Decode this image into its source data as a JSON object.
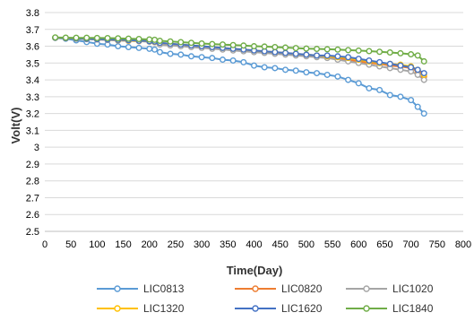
{
  "chart_data": {
    "type": "line",
    "xlabel": "Time(Day)",
    "ylabel": "Volt(V)",
    "xlim": [
      0,
      800
    ],
    "ylim": [
      2.5,
      3.8
    ],
    "x_ticks": [
      "0",
      "50",
      "100",
      "150",
      "200",
      "250",
      "300",
      "350",
      "400",
      "450",
      "500",
      "550",
      "600",
      "650",
      "700",
      "750",
      "800"
    ],
    "y_ticks": [
      "2.5",
      "2.6",
      "2.7",
      "2.8",
      "2.9",
      "3",
      "3.1",
      "3.2",
      "3.3",
      "3.4",
      "3.5",
      "3.6",
      "3.7",
      "3.8"
    ],
    "grid": "horizontal",
    "legend_position": "bottom",
    "series": [
      {
        "name": "LIC0813",
        "color": "#5b9bd5",
        "x": [
          20,
          40,
          60,
          80,
          100,
          120,
          140,
          160,
          180,
          200,
          210,
          220,
          240,
          260,
          280,
          300,
          320,
          340,
          360,
          380,
          400,
          420,
          440,
          460,
          480,
          500,
          520,
          540,
          560,
          580,
          600,
          620,
          640,
          660,
          680,
          700,
          713,
          725
        ],
        "y": [
          3.65,
          3.645,
          3.635,
          3.625,
          3.615,
          3.61,
          3.6,
          3.595,
          3.59,
          3.585,
          3.58,
          3.565,
          3.555,
          3.55,
          3.54,
          3.535,
          3.53,
          3.52,
          3.515,
          3.505,
          3.485,
          3.475,
          3.47,
          3.46,
          3.455,
          3.445,
          3.44,
          3.43,
          3.42,
          3.4,
          3.38,
          3.35,
          3.34,
          3.31,
          3.3,
          3.28,
          3.24,
          3.2
        ]
      },
      {
        "name": "LIC0820",
        "color": "#ed7d31",
        "x": [
          20,
          40,
          60,
          80,
          100,
          120,
          140,
          160,
          180,
          200,
          210,
          220,
          240,
          260,
          280,
          300,
          320,
          340,
          360,
          380,
          400,
          420,
          440,
          460,
          480,
          500,
          520,
          540,
          560,
          580,
          600,
          620,
          640,
          660,
          680,
          700,
          713,
          725
        ],
        "y": [
          3.65,
          3.648,
          3.645,
          3.643,
          3.64,
          3.638,
          3.635,
          3.632,
          3.63,
          3.628,
          3.625,
          3.615,
          3.61,
          3.605,
          3.6,
          3.595,
          3.59,
          3.585,
          3.58,
          3.575,
          3.57,
          3.565,
          3.56,
          3.555,
          3.55,
          3.545,
          3.54,
          3.535,
          3.53,
          3.52,
          3.51,
          3.5,
          3.495,
          3.485,
          3.48,
          3.47,
          3.45,
          3.42
        ]
      },
      {
        "name": "LIC1020",
        "color": "#a5a5a5",
        "x": [
          20,
          40,
          60,
          80,
          100,
          120,
          140,
          160,
          180,
          200,
          210,
          220,
          240,
          260,
          280,
          300,
          320,
          340,
          360,
          380,
          400,
          420,
          440,
          460,
          480,
          500,
          520,
          540,
          560,
          580,
          600,
          620,
          640,
          660,
          680,
          700,
          713,
          725
        ],
        "y": [
          3.65,
          3.648,
          3.645,
          3.642,
          3.64,
          3.637,
          3.634,
          3.632,
          3.63,
          3.627,
          3.624,
          3.61,
          3.605,
          3.6,
          3.595,
          3.59,
          3.585,
          3.58,
          3.575,
          3.57,
          3.565,
          3.56,
          3.555,
          3.55,
          3.545,
          3.54,
          3.535,
          3.53,
          3.52,
          3.51,
          3.5,
          3.49,
          3.48,
          3.47,
          3.46,
          3.45,
          3.43,
          3.4
        ]
      },
      {
        "name": "LIC1320",
        "color": "#ffc000",
        "x": [
          20,
          40,
          60,
          80,
          100,
          120,
          140,
          160,
          180,
          200,
          210,
          220,
          240,
          260,
          280,
          300,
          320,
          340,
          360,
          380,
          400,
          420,
          440,
          460,
          480,
          500,
          520,
          540,
          560,
          580,
          600,
          620,
          640,
          660,
          680,
          700,
          713,
          725
        ],
        "y": [
          3.65,
          3.648,
          3.646,
          3.644,
          3.642,
          3.64,
          3.637,
          3.634,
          3.632,
          3.63,
          3.627,
          3.62,
          3.615,
          3.61,
          3.605,
          3.6,
          3.595,
          3.59,
          3.585,
          3.58,
          3.575,
          3.57,
          3.565,
          3.56,
          3.555,
          3.55,
          3.545,
          3.54,
          3.535,
          3.53,
          3.52,
          3.51,
          3.5,
          3.495,
          3.49,
          3.48,
          3.46,
          3.43
        ]
      },
      {
        "name": "LIC1620",
        "color": "#4472c4",
        "x": [
          20,
          40,
          60,
          80,
          100,
          120,
          140,
          160,
          180,
          200,
          210,
          220,
          240,
          260,
          280,
          300,
          320,
          340,
          360,
          380,
          400,
          420,
          440,
          460,
          480,
          500,
          520,
          540,
          560,
          580,
          600,
          620,
          640,
          660,
          680,
          700,
          713,
          725
        ],
        "y": [
          3.65,
          3.648,
          3.646,
          3.644,
          3.642,
          3.64,
          3.638,
          3.636,
          3.633,
          3.63,
          3.628,
          3.62,
          3.615,
          3.61,
          3.605,
          3.6,
          3.595,
          3.59,
          3.585,
          3.58,
          3.575,
          3.57,
          3.565,
          3.56,
          3.555,
          3.55,
          3.545,
          3.545,
          3.54,
          3.535,
          3.525,
          3.515,
          3.505,
          3.495,
          3.485,
          3.475,
          3.46,
          3.44
        ]
      },
      {
        "name": "LIC1840",
        "color": "#70ad47",
        "x": [
          20,
          40,
          60,
          80,
          100,
          120,
          140,
          160,
          180,
          200,
          210,
          220,
          240,
          260,
          280,
          300,
          320,
          340,
          360,
          380,
          400,
          420,
          440,
          460,
          480,
          500,
          520,
          540,
          560,
          580,
          600,
          620,
          640,
          660,
          680,
          700,
          713,
          725
        ],
        "y": [
          3.652,
          3.651,
          3.65,
          3.65,
          3.649,
          3.648,
          3.647,
          3.645,
          3.643,
          3.64,
          3.638,
          3.632,
          3.628,
          3.624,
          3.62,
          3.616,
          3.613,
          3.61,
          3.607,
          3.604,
          3.6,
          3.598,
          3.595,
          3.592,
          3.589,
          3.586,
          3.584,
          3.582,
          3.58,
          3.577,
          3.574,
          3.571,
          3.567,
          3.563,
          3.558,
          3.552,
          3.545,
          3.51
        ]
      }
    ]
  }
}
